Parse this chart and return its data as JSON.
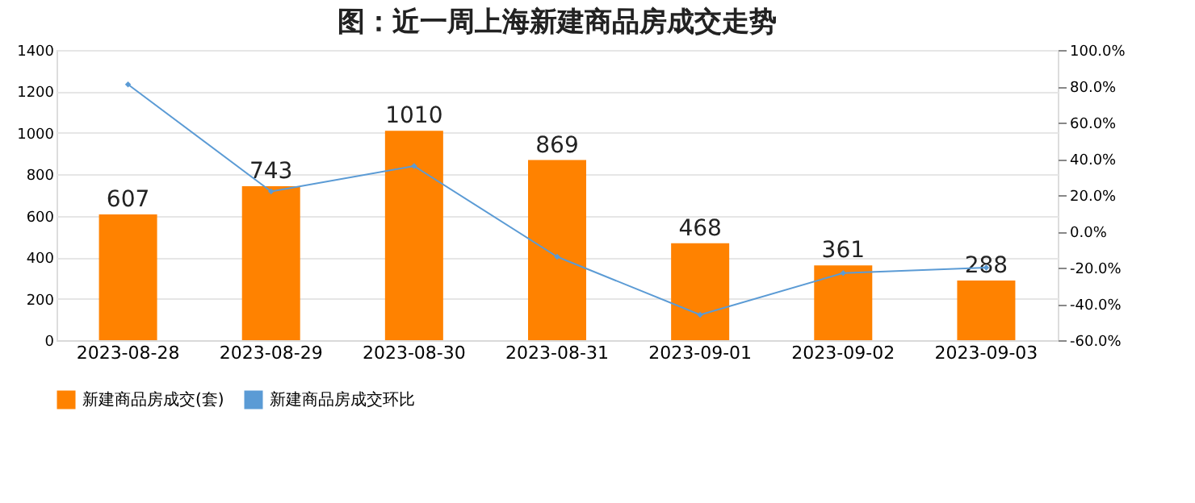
{
  "chart_data": {
    "type": "bar",
    "title": "图：近一周上海新建商品房成交走势",
    "categories": [
      "2023-08-28",
      "2023-08-29",
      "2023-08-30",
      "2023-08-31",
      "2023-09-01",
      "2023-09-02",
      "2023-09-03"
    ],
    "series": [
      {
        "name": "新建商品房成交(套)",
        "color": "#ff8200",
        "values": [
          607,
          743,
          1010,
          869,
          468,
          361,
          288
        ],
        "value_labels": [
          "607",
          "743",
          "1010",
          "869",
          "468",
          "361",
          "288"
        ]
      },
      {
        "name": "新建商品房成交环比",
        "type": "line",
        "axis": "y2",
        "color": "#5b9bd5",
        "marker": "diamond",
        "values": [
          81,
          22,
          36,
          -14,
          -46,
          -23,
          -20
        ]
      }
    ],
    "ylim": [
      0,
      1400
    ],
    "yticks": [
      0,
      200,
      400,
      600,
      800,
      1000,
      1200,
      1400
    ],
    "y2lim": [
      -60,
      100
    ],
    "y2ticks": [
      {
        "value": -60,
        "label": "-60.0%"
      },
      {
        "value": -40,
        "label": "-40.0%"
      },
      {
        "value": -20,
        "label": "-20.0%"
      },
      {
        "value": 0,
        "label": "0.0%"
      },
      {
        "value": 20,
        "label": "20.0%"
      },
      {
        "value": 40,
        "label": "40.0%"
      },
      {
        "value": 60,
        "label": "60.0%"
      },
      {
        "value": 80,
        "label": "80.0%"
      },
      {
        "value": 100,
        "label": "100.0%"
      }
    ],
    "grid": "y",
    "legend": "bottom"
  }
}
